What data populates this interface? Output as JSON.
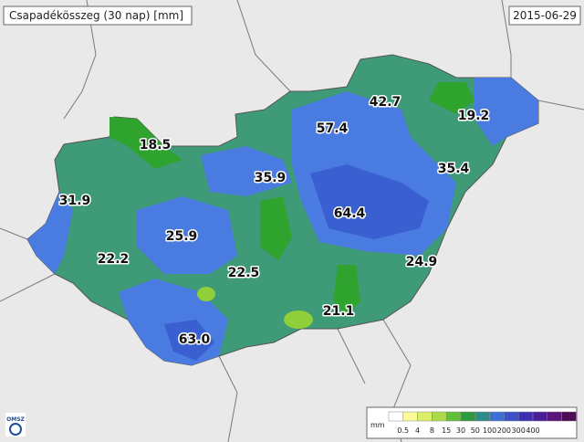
{
  "header": {
    "title": "Csapadékösszeg (30 nap) [mm]",
    "date": "2015-06-29"
  },
  "stations": [
    "18.5",
    "42.7",
    "19.2",
    "57.4",
    "35.4",
    "31.9",
    "35.9",
    "64.4",
    "25.9",
    "22.2",
    "24.9",
    "22.5",
    "21.1",
    "63.0"
  ],
  "legend": {
    "unit": "mm",
    "labels": [
      "0.5",
      "4",
      "8",
      "15",
      "30",
      "50",
      "100",
      "200",
      "300",
      "400"
    ]
  },
  "logo": "OMSZ"
}
